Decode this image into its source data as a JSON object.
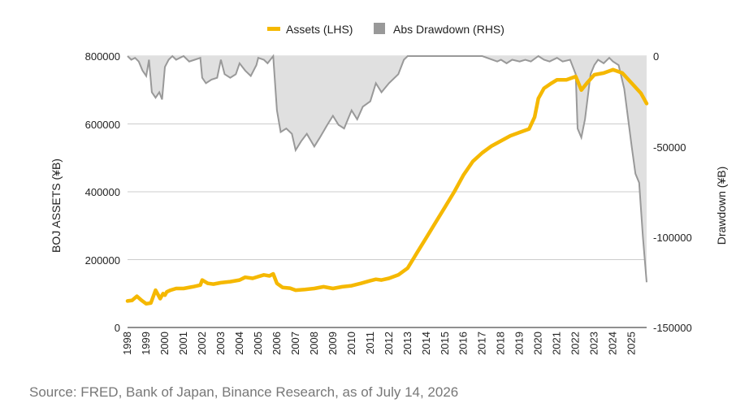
{
  "chart_data": {
    "type": "line+area",
    "legend": {
      "placement": "top-center",
      "entries": [
        {
          "label": "Assets (LHS)",
          "color": "#F5B800"
        },
        {
          "label": "Abs Drawdown (RHS)",
          "color": "#999999"
        }
      ]
    },
    "ylabel_left": "BOJ ASSETS (¥B)",
    "ylabel_right": "Drawdown (¥B)",
    "ylim_left": [
      0,
      800000
    ],
    "ylim_right": [
      -150000,
      0
    ],
    "yticks_left": [
      "800000",
      "600000",
      "400000",
      "200000",
      "0"
    ],
    "yticks_right": [
      "0",
      "-50000",
      "-100000",
      "-150000"
    ],
    "xticks": [
      "1998",
      "1999",
      "2000",
      "2001",
      "2002",
      "2003",
      "2004",
      "2005",
      "2006",
      "2007",
      "2008",
      "2009",
      "2010",
      "2011",
      "2012",
      "2013",
      "2014",
      "2015",
      "2016",
      "2017",
      "2018",
      "2019",
      "2020",
      "2021",
      "2022",
      "2023",
      "2024",
      "2025"
    ],
    "xlim": [
      1998,
      2025.8
    ],
    "gridlines": "horizontal",
    "series": [
      {
        "name": "Assets (LHS)",
        "axis": "left",
        "color": "#F5B800",
        "x": [
          1998,
          1998.25,
          1998.5,
          1998.75,
          1999,
          1999.25,
          1999.5,
          1999.75,
          1999.9,
          2000,
          2000.1,
          2000.3,
          2000.6,
          2001,
          2001.5,
          2001.9,
          2002,
          2002.3,
          2002.6,
          2003,
          2003.5,
          2004,
          2004.3,
          2004.7,
          2005,
          2005.3,
          2005.6,
          2005.8,
          2006,
          2006.3,
          2006.7,
          2007,
          2007.5,
          2008,
          2008.5,
          2009,
          2009.5,
          2010,
          2010.5,
          2011,
          2011.3,
          2011.6,
          2012,
          2012.5,
          2013,
          2013.5,
          2014,
          2014.5,
          2015,
          2015.5,
          2016,
          2016.5,
          2017,
          2017.5,
          2018,
          2018.5,
          2019,
          2019.5,
          2019.8,
          2020,
          2020.3,
          2020.7,
          2021,
          2021.5,
          2022,
          2022.3,
          2022.6,
          2023,
          2023.5,
          2024,
          2024.5,
          2025,
          2025.5,
          2025.8
        ],
        "values": [
          78000,
          80000,
          92000,
          80000,
          70000,
          72000,
          110000,
          85000,
          100000,
          95000,
          105000,
          110000,
          115000,
          115000,
          120000,
          125000,
          140000,
          130000,
          128000,
          132000,
          135000,
          140000,
          148000,
          145000,
          150000,
          155000,
          152000,
          158000,
          130000,
          118000,
          116000,
          110000,
          112000,
          115000,
          120000,
          115000,
          120000,
          123000,
          130000,
          138000,
          142000,
          140000,
          145000,
          155000,
          175000,
          220000,
          265000,
          310000,
          355000,
          400000,
          450000,
          490000,
          515000,
          535000,
          550000,
          565000,
          575000,
          585000,
          620000,
          675000,
          705000,
          720000,
          730000,
          730000,
          740000,
          700000,
          720000,
          745000,
          750000,
          760000,
          750000,
          720000,
          690000,
          660000
        ]
      },
      {
        "name": "Abs Drawdown (RHS)",
        "axis": "right",
        "color": "#999999",
        "fill": "#E0E0E0",
        "x": [
          1998,
          1998.2,
          1998.4,
          1998.6,
          1998.8,
          1999,
          1999.15,
          1999.3,
          1999.5,
          1999.7,
          1999.85,
          2000,
          2000.2,
          2000.4,
          2000.6,
          2000.8,
          2001,
          2001.3,
          2001.6,
          2001.9,
          2002,
          2002.2,
          2002.5,
          2002.8,
          2003,
          2003.2,
          2003.5,
          2003.8,
          2004,
          2004.3,
          2004.6,
          2004.9,
          2005,
          2005.3,
          2005.5,
          2005.8,
          2006,
          2006.2,
          2006.5,
          2006.8,
          2007,
          2007.3,
          2007.6,
          2008,
          2008.3,
          2008.7,
          2009,
          2009.3,
          2009.6,
          2010,
          2010.3,
          2010.6,
          2011,
          2011.3,
          2011.6,
          2012,
          2012.5,
          2012.8,
          2013,
          2014,
          2015,
          2016,
          2017,
          2017.8,
          2018,
          2018.3,
          2018.6,
          2019,
          2019.3,
          2019.6,
          2020,
          2020.3,
          2020.6,
          2021,
          2021.3,
          2021.7,
          2022,
          2022.1,
          2022.3,
          2022.5,
          2022.8,
          2023,
          2023.2,
          2023.5,
          2023.8,
          2024,
          2024.3,
          2024.6,
          2025,
          2025.2,
          2025.4,
          2025.6,
          2025.8
        ],
        "values": [
          0,
          -2000,
          -1000,
          -3000,
          -8000,
          -11000,
          -2000,
          -20000,
          -23000,
          -20000,
          -24000,
          -6000,
          -2000,
          0,
          -2000,
          -1000,
          0,
          -3000,
          -2000,
          -1000,
          -12000,
          -15000,
          -13000,
          -12000,
          -2000,
          -10000,
          -12000,
          -10000,
          -4000,
          -8000,
          -11000,
          -5000,
          -1000,
          -2000,
          -4000,
          0,
          -30000,
          -42000,
          -40000,
          -43000,
          -52000,
          -47000,
          -43000,
          -50000,
          -45000,
          -38000,
          -33000,
          -38000,
          -40000,
          -30000,
          -35000,
          -28000,
          -25000,
          -15000,
          -20000,
          -15000,
          -10000,
          -2000,
          0,
          0,
          0,
          0,
          0,
          -3000,
          -2000,
          -4000,
          -2000,
          -3000,
          -2000,
          -3000,
          0,
          -2000,
          -3000,
          -1000,
          -3000,
          -2000,
          -10000,
          -40000,
          -45000,
          -35000,
          -10000,
          -5000,
          -2000,
          -4000,
          -1000,
          -3000,
          -5000,
          -18000,
          -50000,
          -65000,
          -70000,
          -100000,
          -125000
        ]
      }
    ]
  },
  "source_text": "Source: FRED, Bank of Japan, Binance Research, as of July 14, 2026"
}
